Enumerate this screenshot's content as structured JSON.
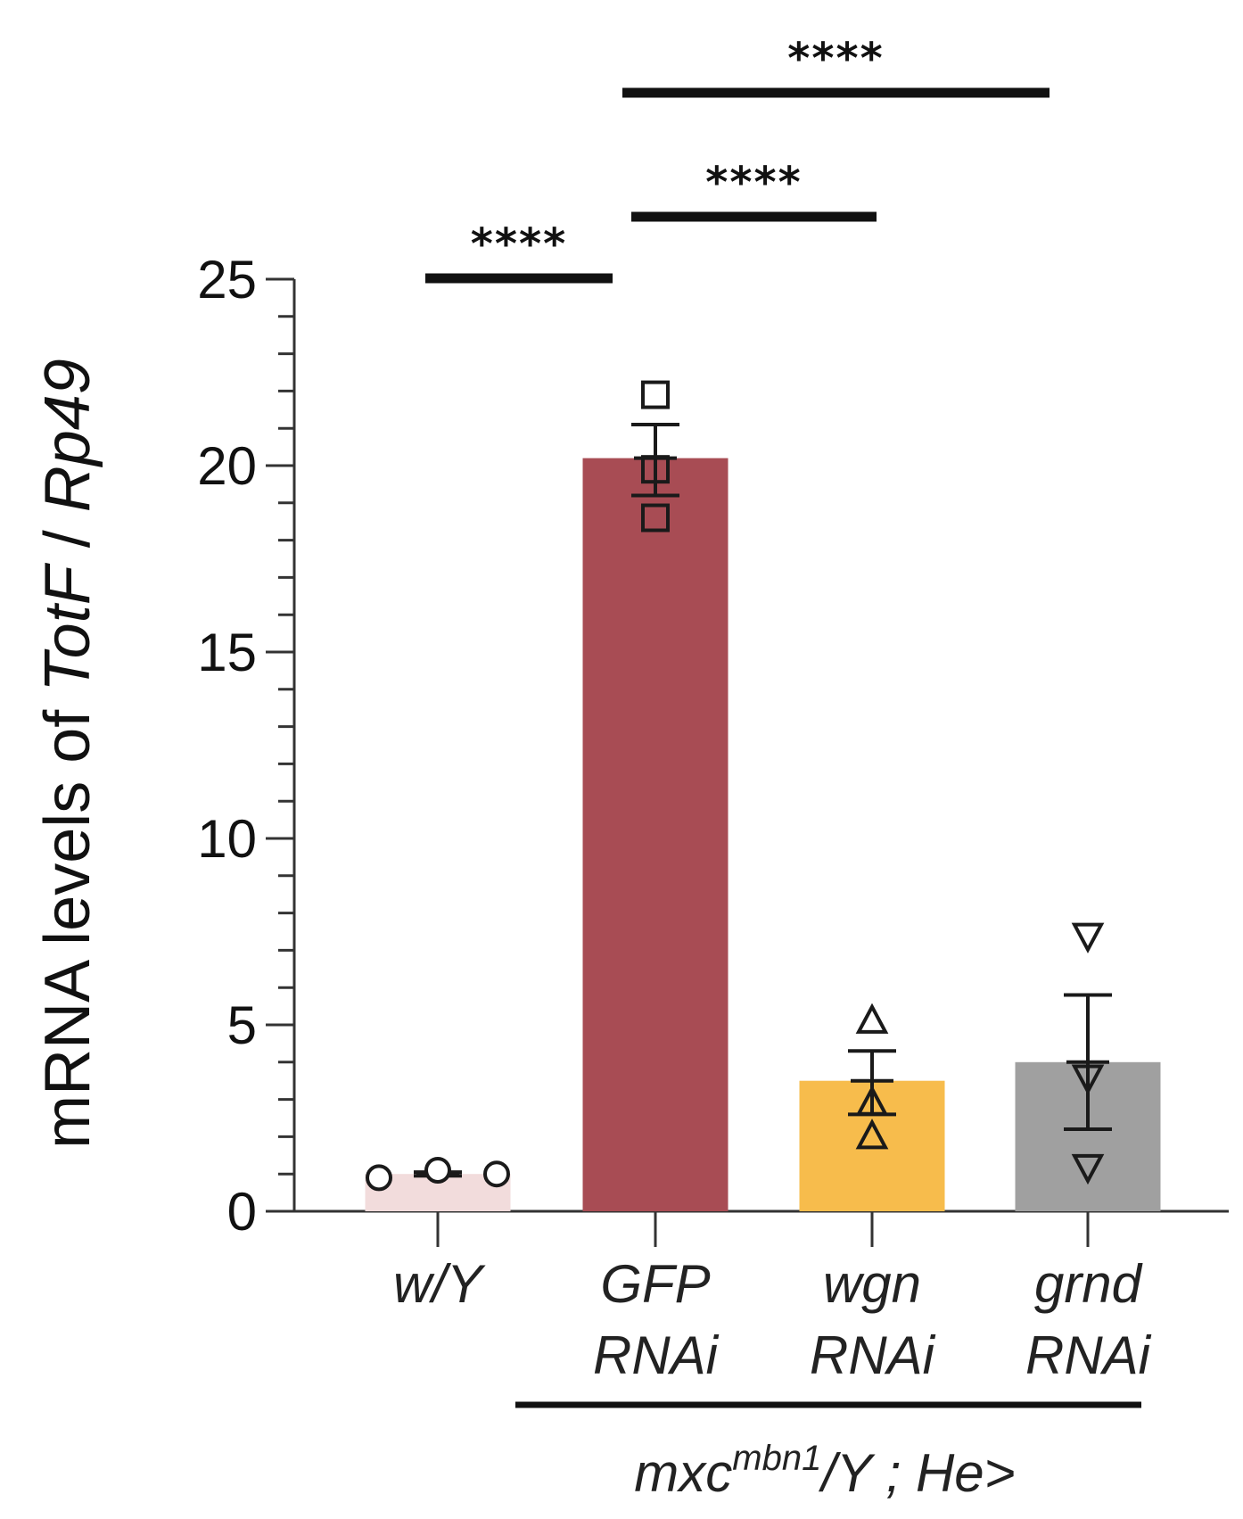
{
  "chart_data": {
    "type": "bar",
    "categories": [
      {
        "line1": "w/Y",
        "line2": ""
      },
      {
        "line1": "GFP",
        "line2": "RNAi"
      },
      {
        "line1": "wgn",
        "line2": "RNAi"
      },
      {
        "line1": "grnd",
        "line2": "RNAi"
      }
    ],
    "values": [
      1.0,
      20.2,
      3.5,
      4.0
    ],
    "error_upper": [
      1.05,
      21.1,
      4.3,
      5.8
    ],
    "error_lower": [
      0.95,
      19.2,
      2.6,
      2.2
    ],
    "points": [
      [
        0.9,
        1.1,
        1.0
      ],
      [
        21.9,
        19.9,
        18.6
      ],
      [
        5.1,
        2.9,
        2.0
      ],
      [
        7.4,
        3.6,
        1.2
      ]
    ],
    "markers": [
      "circle",
      "square",
      "triangle-up",
      "triangle-down"
    ],
    "colors": [
      "#f2dcdc",
      "#a84c54",
      "#f7bc4c",
      "#a0a0a0"
    ],
    "ylabel": {
      "prefix": "mRNA levels of ",
      "gene1": "TotF",
      "sep": " / ",
      "gene2": "Rp49"
    },
    "ylim": [
      0,
      25
    ],
    "yticks": [
      0,
      5,
      10,
      15,
      20,
      25
    ],
    "y_minor_step": 1,
    "significance": [
      {
        "from": 0,
        "to": 1,
        "label": "****"
      },
      {
        "from": 1,
        "to": 2,
        "label": "****"
      },
      {
        "from": 1,
        "to": 3,
        "label": "****"
      }
    ],
    "group": {
      "base": "mxc",
      "sup": "mbn1",
      "rest": "/Y ; He>"
    }
  }
}
